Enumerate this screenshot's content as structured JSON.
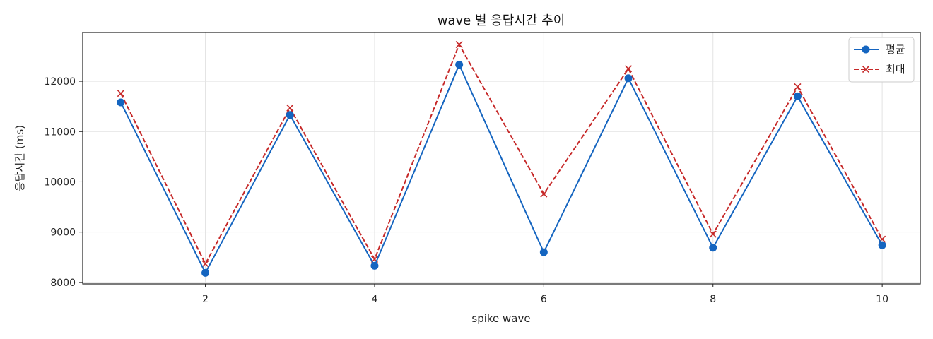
{
  "chart_data": {
    "type": "line",
    "title": "wave 별 응답시간 추이",
    "xlabel": "spike wave",
    "ylabel": "응답시간 (ms)",
    "x": [
      1,
      2,
      3,
      4,
      5,
      6,
      7,
      8,
      9,
      10
    ],
    "xlim": [
      0.55,
      10.45
    ],
    "ylim": [
      7970,
      12970
    ],
    "xticks": [
      2,
      4,
      6,
      8,
      10
    ],
    "yticks": [
      8000,
      9000,
      10000,
      11000,
      12000
    ],
    "grid": true,
    "legend_position": "top-right",
    "series": [
      {
        "name": "평균",
        "values": [
          11580,
          8190,
          11330,
          8330,
          12330,
          8600,
          12060,
          8690,
          11700,
          8740
        ],
        "color": "#1565c0",
        "line_style": "solid",
        "marker": "circle"
      },
      {
        "name": "최대",
        "values": [
          11760,
          8370,
          11470,
          8460,
          12730,
          9760,
          12250,
          8960,
          11890,
          8860
        ],
        "color": "#c62828",
        "line_style": "dashed",
        "marker": "x"
      }
    ]
  }
}
